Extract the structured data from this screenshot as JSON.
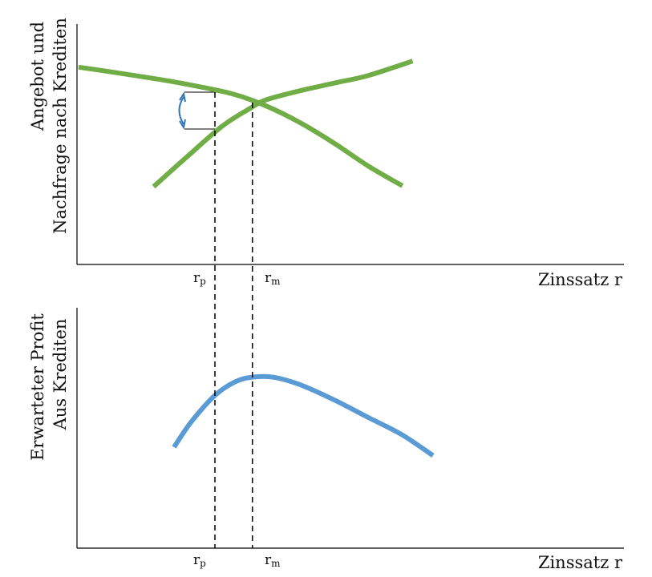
{
  "colors": {
    "green": "#70ad47",
    "blue": "#5b9bd5",
    "arrow": "#2e75b6",
    "axis": "#000000"
  },
  "chart_data": [
    {
      "type": "line",
      "title": "",
      "ylabel_lines": [
        "Angebot und",
        "Nachfrage nach Krediten"
      ],
      "xlabel": "Zinssatz r",
      "tick_labels": [
        {
          "base": "r",
          "sub": "p"
        },
        {
          "base": "r",
          "sub": "m"
        }
      ],
      "xlim": [
        0,
        10
      ],
      "ylim": [
        0,
        10
      ],
      "series": [
        {
          "x": [
            0,
            1.5,
            3,
            4.5,
            5.5,
            6.5,
            7.5,
            8.5,
            9.5
          ],
          "y": [
            8.75,
            8.25,
            7.7,
            7.0,
            6.2,
            5.1,
            3.75,
            2.25,
            0.95
          ]
        },
        {
          "x": [
            2.2,
            3.2,
            4.2,
            5.0,
            5.5,
            6.5,
            7.5,
            8.5,
            9.8
          ],
          "y": [
            0.9,
            2.9,
            4.85,
            6.0,
            6.6,
            7.2,
            7.7,
            8.2,
            9.15
          ]
        }
      ],
      "markers": [
        {
          "x": 4.0,
          "label_index": 0
        },
        {
          "x": 5.1,
          "label_index": 1
        }
      ]
    },
    {
      "type": "line",
      "title": "",
      "ylabel_lines": [
        "Erwarteter Profit",
        "Aus Krediten"
      ],
      "xlabel": "Zinssatz r",
      "tick_labels": [
        {
          "base": "r",
          "sub": "p"
        },
        {
          "base": "r",
          "sub": "m"
        }
      ],
      "xlim": [
        0,
        10
      ],
      "ylim": [
        0,
        10
      ],
      "series": [
        {
          "x": [
            2.8,
            3.3,
            4.0,
            4.6,
            5.1,
            5.7,
            6.5,
            7.5,
            8.5,
            9.5,
            10.4
          ],
          "y": [
            3.0,
            4.65,
            6.4,
            7.3,
            7.6,
            7.6,
            7.1,
            6.1,
            4.95,
            3.8,
            2.45
          ]
        }
      ],
      "markers": [
        {
          "x": 4.0,
          "label_index": 0
        },
        {
          "x": 5.1,
          "label_index": 1
        }
      ]
    }
  ]
}
